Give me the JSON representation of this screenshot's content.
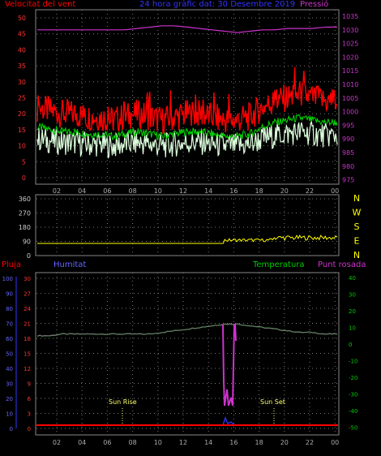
{
  "header": {
    "wind_label": "Velocitat del vent",
    "title": "24 hora gràfic dat: 30 Desembre 2019",
    "pressure_label": "Pressió"
  },
  "wind_chart": {
    "left_ticks": [
      "50",
      "45",
      "40",
      "35",
      "30",
      "25",
      "20",
      "15",
      "10",
      "5",
      "0"
    ],
    "right_ticks": [
      "1035",
      "1030",
      "1025",
      "1020",
      "1015",
      "1010",
      "1005",
      "1000",
      "995",
      "990",
      "985",
      "980",
      "975"
    ]
  },
  "direction_chart": {
    "left_ticks": [
      "360",
      "270",
      "180",
      "90",
      "0"
    ],
    "right_letters": [
      "N",
      "W",
      "S",
      "E",
      "N"
    ]
  },
  "x_ticks": [
    "02",
    "04",
    "06",
    "08",
    "10",
    "12",
    "14",
    "16",
    "18",
    "20",
    "22",
    "00"
  ],
  "lower_chart": {
    "pluja_label": "Pluja",
    "humitat_label": "Humitat",
    "temperatura_label": "Temperatura",
    "punt_rosada_label": "Punt rosada",
    "humidity_ticks": [
      "100",
      "90",
      "80",
      "70",
      "60",
      "50",
      "40",
      "30",
      "20",
      "10",
      "0"
    ],
    "rain_ticks": [
      "30",
      "27",
      "24",
      "21",
      "18",
      "15",
      "12",
      "9",
      "6",
      "3",
      "0"
    ],
    "temp_ticks": [
      "40",
      "30",
      "20",
      "10",
      "0",
      "-10",
      "-20",
      "-30",
      "-40",
      "-50"
    ],
    "sunrise_label": "Sun Rise",
    "sunset_label": "Sun Set"
  },
  "colors": {
    "wind_avg": "#ffffff",
    "wind_gust": "#ff0000",
    "pressure": "#cc33cc",
    "direction": "#ffff00",
    "temperature": "#00cc00",
    "dew_point": "#cc33cc",
    "rain": "#ff0000",
    "humidity": "#3333ff"
  },
  "chart_data": [
    {
      "type": "line",
      "title": "24 hora gràfic dat: 30 Desembre 2019",
      "series": [
        {
          "name": "Velocitat del vent",
          "values": [
            22,
            21,
            20,
            20,
            19,
            19,
            18,
            19,
            20,
            19,
            18,
            19,
            20,
            20,
            19,
            18,
            18,
            19,
            22,
            24,
            25,
            26,
            25,
            24,
            24
          ]
        },
        {
          "name": "Pressió",
          "values": [
            1030,
            1030,
            1030,
            1030,
            1030,
            1030,
            1030,
            1030,
            1030.5,
            1031,
            1031.5,
            1031.5,
            1031,
            1030.5,
            1030,
            1029.5,
            1029,
            1029.5,
            1030,
            1030,
            1030.5,
            1030.5,
            1030.5,
            1031,
            1031
          ]
        }
      ],
      "ylim": [
        0,
        50
      ]
    },
    {
      "type": "line",
      "series": [
        {
          "name": "Temperatura",
          "values": [
            5,
            5,
            6,
            6,
            6,
            6,
            6,
            6,
            6,
            6,
            7,
            8,
            9,
            10,
            11,
            12,
            12,
            11,
            10,
            9,
            8,
            7,
            7,
            6,
            6
          ]
        },
        {
          "name": "Punt rosada",
          "values": [
            5,
            5,
            6,
            6,
            6,
            6,
            6,
            6,
            6,
            6,
            7,
            8,
            9,
            10,
            11,
            12,
            12,
            11,
            10,
            9,
            8,
            7,
            7,
            6,
            6
          ]
        }
      ],
      "ylim": [
        -50,
        40
      ]
    }
  ]
}
